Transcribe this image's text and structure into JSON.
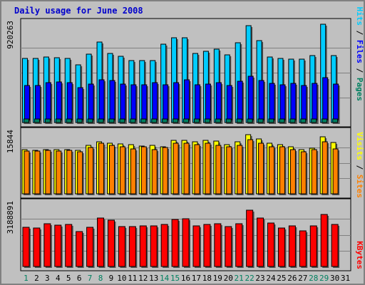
{
  "title": "Daily usage for June 2008",
  "colors": {
    "hits": "#00ccff",
    "files": "#0000ff",
    "pages": "#008060",
    "visits": "#ffff00",
    "sites": "#ff8000",
    "kbytes": "#ff0000",
    "weekday": "#000000",
    "weekend": "#008060",
    "separator": "#000000"
  },
  "chart_data": [
    {
      "type": "bar",
      "x": [
        "1",
        "2",
        "3",
        "4",
        "5",
        "6",
        "7",
        "8",
        "9",
        "10",
        "11",
        "12",
        "13",
        "14",
        "15",
        "16",
        "17",
        "18",
        "19",
        "20",
        "21",
        "22",
        "23",
        "24",
        "25",
        "26",
        "27",
        "28",
        "29",
        "30",
        "31"
      ],
      "weekend_days": [
        "1",
        "7",
        "8",
        "14",
        "15",
        "21",
        "22",
        "28",
        "29"
      ],
      "y_tick_label": "920263",
      "ylim": [
        0,
        920263
      ],
      "legend": [
        "Pages",
        "Files",
        "Hits"
      ],
      "series": [
        {
          "name": "Hits",
          "values": [
            590000,
            590000,
            605000,
            600000,
            590000,
            530000,
            630000,
            740000,
            640000,
            610000,
            570000,
            575000,
            575000,
            720000,
            780000,
            785000,
            640000,
            655000,
            680000,
            625000,
            735000,
            895000,
            755000,
            605000,
            590000,
            585000,
            585000,
            620000,
            905000,
            615000,
            null
          ]
        },
        {
          "name": "Files",
          "values": [
            340000,
            340000,
            365000,
            375000,
            370000,
            320000,
            355000,
            395000,
            385000,
            355000,
            350000,
            350000,
            365000,
            350000,
            365000,
            395000,
            350000,
            355000,
            365000,
            340000,
            380000,
            425000,
            390000,
            360000,
            350000,
            360000,
            340000,
            360000,
            415000,
            355000,
            null
          ]
        },
        {
          "name": "Pages",
          "values": [
            30000,
            30000,
            30000,
            30000,
            30000,
            30000,
            30000,
            30000,
            30000,
            30000,
            30000,
            30000,
            30000,
            30000,
            30000,
            30000,
            30000,
            30000,
            30000,
            30000,
            30000,
            30000,
            30000,
            30000,
            30000,
            30000,
            30000,
            30000,
            30000,
            30000,
            null
          ]
        }
      ]
    },
    {
      "type": "bar",
      "y_tick_label": "15844",
      "ylim": [
        0,
        15844
      ],
      "legend": [
        "Sites",
        "Visits"
      ],
      "series": [
        {
          "name": "Visits",
          "values": [
            11350,
            11150,
            11350,
            11250,
            11350,
            11050,
            12350,
            13300,
            12950,
            12750,
            12650,
            12250,
            12350,
            12050,
            13650,
            13650,
            13350,
            13650,
            13450,
            12550,
            13250,
            15100,
            14100,
            13000,
            12550,
            12050,
            11350,
            11650,
            14550,
            13050,
            null
          ]
        },
        {
          "name": "Sites",
          "values": [
            10950,
            10950,
            11050,
            10950,
            11050,
            10750,
            11750,
            12950,
            12450,
            12050,
            11550,
            11950,
            11350,
            11750,
            12850,
            12950,
            12550,
            12950,
            12450,
            11950,
            12450,
            13750,
            12950,
            11950,
            11950,
            11350,
            10750,
            11350,
            13300,
            11550,
            null
          ]
        }
      ]
    },
    {
      "type": "bar",
      "y_tick_label": "3188891",
      "ylim": [
        0,
        3188891
      ],
      "legend": [
        "KBytes"
      ],
      "series": [
        {
          "name": "KBytes",
          "values": [
            1960000,
            1950000,
            2140000,
            2080000,
            2110000,
            1740000,
            1960000,
            2420000,
            2330000,
            2020000,
            2000000,
            2050000,
            2030000,
            2110000,
            2360000,
            2410000,
            2040000,
            2130000,
            2140000,
            1990000,
            2140000,
            2820000,
            2430000,
            2190000,
            1940000,
            2030000,
            1790000,
            2030000,
            2620000,
            2100000,
            null
          ]
        }
      ]
    }
  ]
}
